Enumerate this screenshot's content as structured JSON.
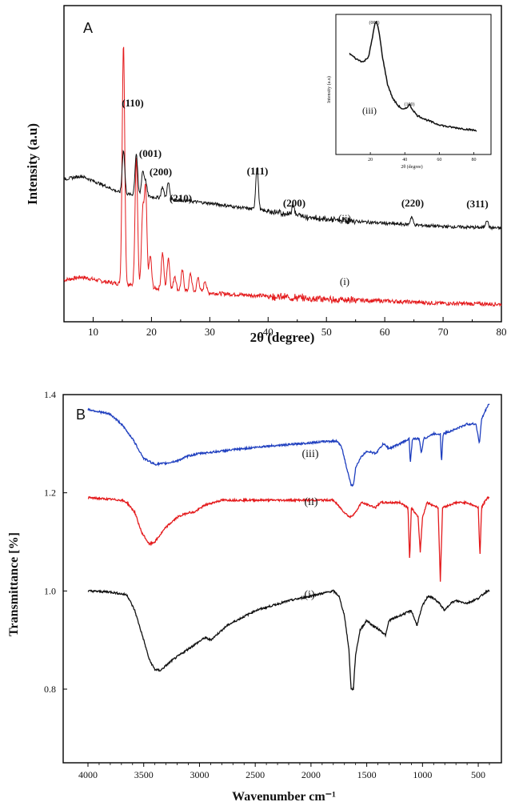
{
  "chart_data": [
    {
      "panel": "A",
      "type": "line",
      "xlabel": "2θ (degree)",
      "ylabel": "Intensity (a.u)",
      "xlim": [
        5,
        80
      ],
      "x_ticks": [
        10,
        20,
        30,
        40,
        50,
        60,
        70,
        80
      ],
      "grid": false,
      "series": [
        {
          "name": "(i)",
          "color": "#e41a1c",
          "baseline": [
            [
              5,
              52
            ],
            [
              8,
              56
            ],
            [
              12,
              50
            ],
            [
              20,
              42
            ],
            [
              30,
              36
            ],
            [
              40,
              32
            ],
            [
              50,
              28
            ],
            [
              60,
              26
            ],
            [
              70,
              23
            ],
            [
              80,
              22
            ]
          ],
          "peaks": [
            [
              15.2,
              300
            ],
            [
              17.4,
              160
            ],
            [
              18.5,
              90
            ],
            [
              19.0,
              120
            ],
            [
              19.8,
              40
            ],
            [
              21.9,
              45
            ],
            [
              22.9,
              40
            ],
            [
              24.0,
              18
            ],
            [
              25.3,
              25
            ],
            [
              26.7,
              22
            ],
            [
              28.0,
              18
            ],
            [
              29.2,
              15
            ]
          ]
        },
        {
          "name": "(ii)",
          "color": "#111111",
          "baseline": [
            [
              5,
              178
            ],
            [
              8,
              182
            ],
            [
              12,
              170
            ],
            [
              15,
              160
            ],
            [
              20,
              156
            ],
            [
              25,
              152
            ],
            [
              30,
              148
            ],
            [
              35,
              143
            ],
            [
              40,
              138
            ],
            [
              45,
              133
            ],
            [
              50,
              128
            ],
            [
              60,
              123
            ],
            [
              70,
              119
            ],
            [
              80,
              117
            ]
          ],
          "peaks": [
            [
              15.2,
              55
            ],
            [
              17.4,
              52
            ],
            [
              18.5,
              30
            ],
            [
              19.0,
              18
            ],
            [
              21.9,
              14
            ],
            [
              22.9,
              20
            ],
            [
              38.1,
              54
            ],
            [
              44.3,
              14
            ],
            [
              64.6,
              10
            ],
            [
              77.5,
              10
            ]
          ]
        }
      ],
      "peak_labels": [
        "(110)",
        "(001)",
        "(200)",
        "(210)",
        "(111)",
        "(200)",
        "(220)",
        "(311)"
      ],
      "inset": {
        "type": "line",
        "xlabel": "2θ (degree)",
        "ylabel": "Intensity (a.u)",
        "xlim": [
          0,
          90
        ],
        "x_ticks": [
          20,
          40,
          60,
          80
        ],
        "series": [
          {
            "name": "(iii)",
            "color": "#111111",
            "points": [
              [
                8,
                72
              ],
              [
                12,
                68
              ],
              [
                16,
                66
              ],
              [
                19,
                70
              ],
              [
                21,
                82
              ],
              [
                22.5,
                93
              ],
              [
                23.5,
                95
              ],
              [
                25,
                88
              ],
              [
                27,
                70
              ],
              [
                30,
                50
              ],
              [
                33,
                40
              ],
              [
                36,
                35
              ],
              [
                39,
                32
              ],
              [
                41,
                33
              ],
              [
                42.5,
                36
              ],
              [
                44,
                33
              ],
              [
                47,
                28
              ],
              [
                52,
                25
              ],
              [
                58,
                22
              ],
              [
                64,
                20
              ],
              [
                70,
                19
              ],
              [
                76,
                18
              ],
              [
                82,
                17
              ]
            ]
          }
        ],
        "peak_labels": [
          "(002)",
          "(100)"
        ]
      }
    },
    {
      "panel": "B",
      "type": "line",
      "xlabel": "Wavenumber cm⁻¹",
      "ylabel": "Transmittance [%]",
      "xlim": [
        4000,
        400
      ],
      "ylim": [
        0.65,
        1.4
      ],
      "x_ticks": [
        4000,
        3500,
        3000,
        2500,
        2000,
        1500,
        1000,
        500
      ],
      "y_ticks": [
        0.8,
        1.0,
        1.2,
        1.4
      ],
      "grid": false,
      "series": [
        {
          "name": "(i)",
          "color": "#111111",
          "points": [
            [
              4000,
              1.0
            ],
            [
              3800,
              0.998
            ],
            [
              3650,
              0.992
            ],
            [
              3580,
              0.96
            ],
            [
              3500,
              0.9
            ],
            [
              3450,
              0.86
            ],
            [
              3400,
              0.84
            ],
            [
              3350,
              0.838
            ],
            [
              3250,
              0.858
            ],
            [
              3100,
              0.882
            ],
            [
              2950,
              0.905
            ],
            [
              2900,
              0.9
            ],
            [
              2750,
              0.93
            ],
            [
              2500,
              0.96
            ],
            [
              2200,
              0.98
            ],
            [
              2000,
              0.99
            ],
            [
              1800,
              1.0
            ],
            [
              1750,
              0.99
            ],
            [
              1700,
              0.95
            ],
            [
              1660,
              0.88
            ],
            [
              1640,
              0.8
            ],
            [
              1620,
              0.8
            ],
            [
              1600,
              0.87
            ],
            [
              1560,
              0.92
            ],
            [
              1500,
              0.94
            ],
            [
              1450,
              0.93
            ],
            [
              1380,
              0.92
            ],
            [
              1330,
              0.91
            ],
            [
              1300,
              0.94
            ],
            [
              1200,
              0.95
            ],
            [
              1100,
              0.96
            ],
            [
              1050,
              0.93
            ],
            [
              1000,
              0.97
            ],
            [
              950,
              0.99
            ],
            [
              900,
              0.985
            ],
            [
              850,
              0.975
            ],
            [
              800,
              0.96
            ],
            [
              750,
              0.975
            ],
            [
              700,
              0.98
            ],
            [
              600,
              0.975
            ],
            [
              500,
              0.985
            ],
            [
              420,
              1.0
            ]
          ]
        },
        {
          "name": "(ii)",
          "color": "#e41a1c",
          "points": [
            [
              4000,
              1.19
            ],
            [
              3700,
              1.185
            ],
            [
              3650,
              1.18
            ],
            [
              3580,
              1.16
            ],
            [
              3520,
              1.12
            ],
            [
              3450,
              1.095
            ],
            [
              3400,
              1.1
            ],
            [
              3300,
              1.13
            ],
            [
              3200,
              1.15
            ],
            [
              3100,
              1.16
            ],
            [
              3050,
              1.16
            ],
            [
              2950,
              1.175
            ],
            [
              2800,
              1.185
            ],
            [
              2500,
              1.185
            ],
            [
              2000,
              1.185
            ],
            [
              1800,
              1.185
            ],
            [
              1700,
              1.16
            ],
            [
              1650,
              1.15
            ],
            [
              1600,
              1.16
            ],
            [
              1550,
              1.18
            ],
            [
              1420,
              1.17
            ],
            [
              1380,
              1.18
            ],
            [
              1200,
              1.18
            ],
            [
              1130,
              1.17
            ],
            [
              1115,
              1.06
            ],
            [
              1100,
              1.17
            ],
            [
              1040,
              1.15
            ],
            [
              1020,
              1.08
            ],
            [
              1000,
              1.15
            ],
            [
              960,
              1.18
            ],
            [
              860,
              1.17
            ],
            [
              840,
              1.02
            ],
            [
              820,
              1.17
            ],
            [
              700,
              1.18
            ],
            [
              600,
              1.18
            ],
            [
              500,
              1.17
            ],
            [
              485,
              1.07
            ],
            [
              470,
              1.17
            ],
            [
              420,
              1.19
            ]
          ]
        },
        {
          "name": "(iii)",
          "color": "#1f3fbf",
          "points": [
            [
              4000,
              1.37
            ],
            [
              3800,
              1.36
            ],
            [
              3700,
              1.34
            ],
            [
              3600,
              1.31
            ],
            [
              3500,
              1.27
            ],
            [
              3400,
              1.258
            ],
            [
              3300,
              1.26
            ],
            [
              3200,
              1.265
            ],
            [
              3100,
              1.275
            ],
            [
              3000,
              1.28
            ],
            [
              2800,
              1.285
            ],
            [
              2600,
              1.29
            ],
            [
              2400,
              1.295
            ],
            [
              2200,
              1.298
            ],
            [
              2000,
              1.302
            ],
            [
              1850,
              1.305
            ],
            [
              1760,
              1.305
            ],
            [
              1720,
              1.29
            ],
            [
              1680,
              1.25
            ],
            [
              1640,
              1.215
            ],
            [
              1620,
              1.215
            ],
            [
              1600,
              1.25
            ],
            [
              1560,
              1.27
            ],
            [
              1500,
              1.285
            ],
            [
              1420,
              1.28
            ],
            [
              1350,
              1.3
            ],
            [
              1300,
              1.29
            ],
            [
              1200,
              1.3
            ],
            [
              1120,
              1.31
            ],
            [
              1110,
              1.26
            ],
            [
              1090,
              1.31
            ],
            [
              1030,
              1.31
            ],
            [
              1010,
              1.28
            ],
            [
              990,
              1.31
            ],
            [
              900,
              1.32
            ],
            [
              840,
              1.32
            ],
            [
              830,
              1.26
            ],
            [
              815,
              1.32
            ],
            [
              700,
              1.33
            ],
            [
              600,
              1.34
            ],
            [
              520,
              1.34
            ],
            [
              490,
              1.3
            ],
            [
              470,
              1.35
            ],
            [
              430,
              1.37
            ],
            [
              410,
              1.38
            ]
          ]
        }
      ]
    }
  ]
}
